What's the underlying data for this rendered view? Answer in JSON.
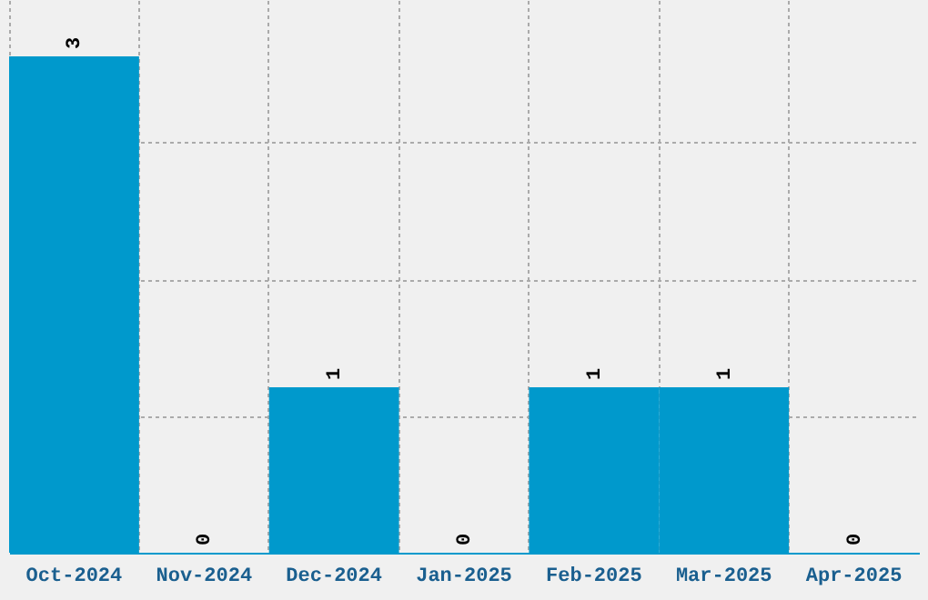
{
  "chart_data": {
    "type": "bar",
    "categories": [
      "Oct-2024",
      "Nov-2024",
      "Dec-2024",
      "Jan-2025",
      "Feb-2025",
      "Mar-2025",
      "Apr-2025"
    ],
    "values": [
      3,
      0,
      1,
      0,
      1,
      1,
      0
    ],
    "color": "#0099cc",
    "ylim": [
      0,
      3.34
    ],
    "yticks": [
      {
        "value": 0.82,
        "label": null
      },
      {
        "value": 1.65,
        "label": null
      },
      {
        "value": 2.48,
        "label": null
      }
    ],
    "grid": true,
    "data_labels": true,
    "tick_labels": "x"
  }
}
